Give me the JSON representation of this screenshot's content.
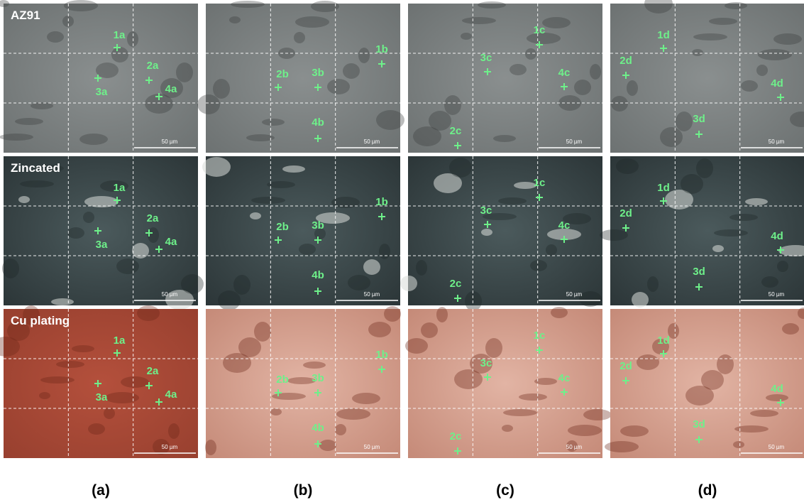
{
  "row_labels": [
    "AZ91",
    "Zincated",
    "Cu plating"
  ],
  "points": [
    [
      "1a",
      "2a",
      "3a",
      "4a"
    ],
    [
      "1b",
      "2b",
      "3b",
      "4b"
    ],
    [
      "1c",
      "2c",
      "3c",
      "4c"
    ],
    [
      "1d",
      "2d",
      "3d",
      "4d"
    ]
  ],
  "scale_bar": "50 µm",
  "panel_labels": [
    "(a)",
    "(b)",
    "(c)",
    "(d)"
  ]
}
